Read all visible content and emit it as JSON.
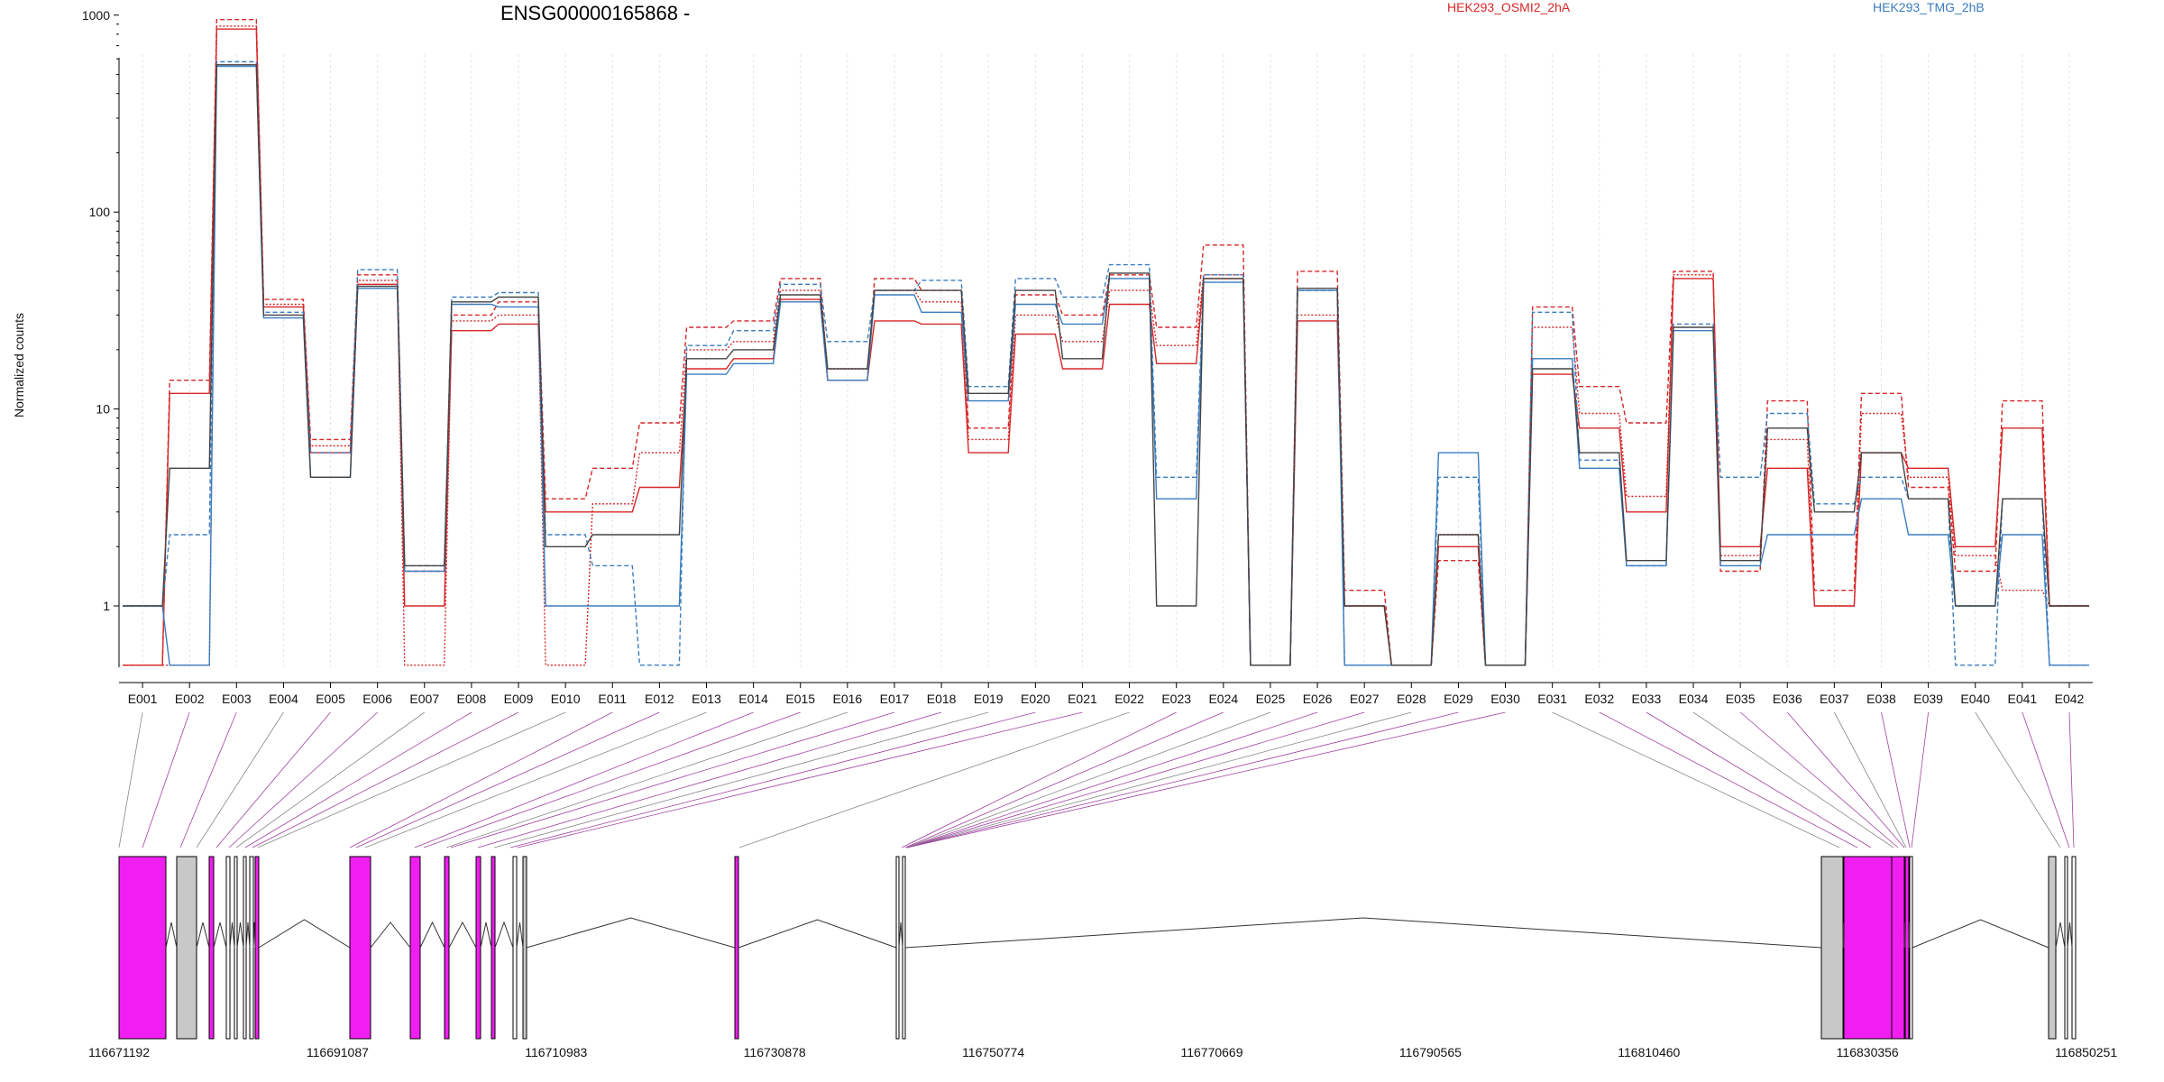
{
  "colors": {
    "red": "#d62728",
    "blue": "#3a7dbf",
    "dark": "#444444",
    "magenta": "#f01ef0",
    "gray": "#c8c8c8",
    "purple_link": "#a040a0",
    "gray_link": "#888888"
  },
  "chart_data": {
    "type": "line",
    "title": "ENSG00000165868 -",
    "xlabel": "",
    "ylabel": "Normalized counts",
    "y_scale": "log",
    "ylim": [
      0.5,
      1000
    ],
    "y_ticks": [
      1,
      10,
      100,
      1000
    ],
    "y_tick_labels": [
      "1",
      "10",
      "100",
      "1000"
    ],
    "grid": "vertical",
    "legend": [
      {
        "name": "HEK293_OSMI2_2hA",
        "color": "#d62728",
        "placement": "top-right"
      },
      {
        "name": "HEK293_TMG_2hB",
        "color": "#3a7dbf",
        "placement": "top-right"
      }
    ],
    "categories": [
      "E001",
      "E002",
      "E003",
      "E004",
      "E005",
      "E006",
      "E007",
      "E008",
      "E009",
      "E010",
      "E011",
      "E012",
      "E013",
      "E014",
      "E015",
      "E016",
      "E017",
      "E018",
      "E019",
      "E020",
      "E021",
      "E022",
      "E023",
      "E024",
      "E025",
      "E026",
      "E027",
      "E028",
      "E029",
      "E030",
      "E031",
      "E032",
      "E033",
      "E034",
      "E035",
      "E036",
      "E037",
      "E038",
      "E039",
      "E040",
      "E041",
      "E042"
    ],
    "series": [
      {
        "group": "red",
        "style": "solid",
        "values": [
          0.5,
          12,
          850,
          33,
          6,
          43,
          1,
          25,
          27,
          3,
          3,
          4,
          16,
          18,
          36,
          14,
          28,
          27,
          6,
          24,
          16,
          34,
          17,
          46,
          0.5,
          28,
          1,
          0.5,
          2,
          0.5,
          15,
          8,
          3,
          46,
          2,
          5,
          1,
          6,
          5,
          2,
          8,
          1
        ]
      },
      {
        "group": "red",
        "style": "dashed",
        "values": [
          0.5,
          14,
          950,
          36,
          7,
          48,
          1.5,
          30,
          35,
          3.5,
          5,
          8.5,
          26,
          28,
          46,
          14,
          46,
          40,
          8,
          38,
          30,
          48,
          26,
          68,
          0.5,
          50,
          1.2,
          0.5,
          1.7,
          0.5,
          33,
          13,
          8.5,
          50,
          1.5,
          11,
          1.2,
          12,
          4,
          1.5,
          11,
          1
        ]
      },
      {
        "group": "red",
        "style": "dotted",
        "values": [
          0.5,
          0.5,
          880,
          34,
          6.5,
          45,
          0.5,
          28,
          30,
          0.5,
          3.3,
          6,
          20,
          22,
          40,
          16,
          40,
          35,
          7,
          30,
          22,
          40,
          21,
          48,
          0.5,
          30,
          1,
          0.5,
          2.3,
          0.5,
          26,
          9.5,
          3.6,
          48,
          1.8,
          7,
          1,
          9.5,
          4.5,
          1.8,
          1.2,
          1
        ]
      },
      {
        "group": "blue",
        "style": "solid",
        "values": [
          1,
          0.5,
          550,
          29,
          4.5,
          41,
          1.5,
          34,
          33,
          1,
          1,
          1,
          15,
          17,
          35,
          14,
          38,
          31,
          11,
          34,
          27,
          46,
          3.5,
          44,
          0.5,
          40,
          0.5,
          0.5,
          6,
          0.5,
          18,
          5,
          1.6,
          25,
          1.6,
          2.3,
          2.3,
          3.5,
          2.3,
          1,
          2.3,
          0.5
        ]
      },
      {
        "group": "blue",
        "style": "dashed",
        "values": [
          1,
          2.3,
          580,
          31,
          6,
          51,
          1.6,
          37,
          39,
          2.3,
          1.6,
          0.5,
          21,
          25,
          43,
          22,
          40,
          45,
          13,
          46,
          37,
          54,
          4.5,
          48,
          0.5,
          40,
          0.5,
          0.5,
          4.5,
          0.5,
          31,
          5.5,
          1.6,
          27,
          4.5,
          9.5,
          3.3,
          4.5,
          3.5,
          0.5,
          3.5,
          0.5
        ]
      },
      {
        "group": "dark",
        "style": "solid",
        "values": [
          1,
          5,
          560,
          30,
          4.5,
          42,
          1.6,
          35,
          37,
          2,
          2.3,
          2.3,
          18,
          20,
          38,
          16,
          40,
          40,
          12,
          40,
          18,
          49,
          1,
          46,
          0.5,
          41,
          1,
          0.5,
          2.3,
          0.5,
          16,
          6,
          1.7,
          26,
          1.7,
          8,
          3,
          6,
          3.5,
          1,
          3.5,
          1
        ]
      }
    ],
    "genome_coordinates": [
      "116671192",
      "116691087",
      "116710983",
      "116730878",
      "116750774",
      "116770669",
      "116790565",
      "116810460",
      "116830356",
      "116850251"
    ]
  }
}
